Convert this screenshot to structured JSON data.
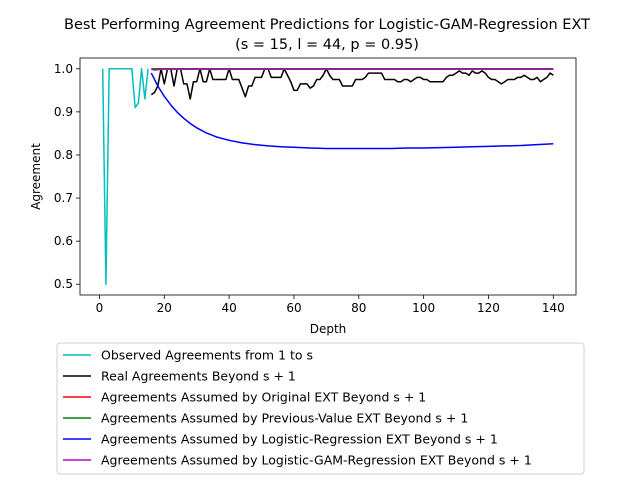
{
  "chart_data": {
    "type": "line",
    "title": "Best Performing Agreement Predictions for Logistic-GAM-Regression EXT",
    "subtitle": "(s = 15, l = 44, p = 0.95)",
    "xlabel": "Depth",
    "ylabel": "Agreement",
    "xlim": [
      -6,
      147
    ],
    "ylim": [
      0.475,
      1.025
    ],
    "xticks": [
      0,
      20,
      40,
      60,
      80,
      100,
      120,
      140
    ],
    "yticks": [
      0.5,
      0.6,
      0.7,
      0.8,
      0.9,
      1.0
    ],
    "ytick_labels": [
      "0.5",
      "0.6",
      "0.7",
      "0.8",
      "0.9",
      "1.0"
    ],
    "grid": false,
    "legend_placement": "below plot",
    "series": [
      {
        "name": "Observed Agreements from 1 to s",
        "color": "#00bfbf",
        "x": [
          1,
          2,
          3,
          4,
          5,
          6,
          7,
          8,
          9,
          10,
          11,
          12,
          13,
          14,
          15
        ],
        "y": [
          1.0,
          0.5,
          1.0,
          1.0,
          1.0,
          1.0,
          1.0,
          1.0,
          1.0,
          1.0,
          0.91,
          0.92,
          1.0,
          0.93,
          1.0
        ]
      },
      {
        "name": "Real Agreements Beyond s + 1",
        "color": "#000000",
        "x": [
          16,
          17,
          18,
          19,
          20,
          21,
          22,
          23,
          24,
          25,
          26,
          27,
          28,
          29,
          30,
          31,
          32,
          33,
          34,
          35,
          36,
          37,
          38,
          39,
          40,
          41,
          42,
          43,
          44,
          45,
          46,
          47,
          48,
          49,
          50,
          51,
          52,
          53,
          54,
          55,
          56,
          57,
          58,
          59,
          60,
          61,
          62,
          63,
          64,
          65,
          66,
          67,
          68,
          69,
          70,
          71,
          72,
          73,
          74,
          75,
          76,
          77,
          78,
          79,
          80,
          81,
          82,
          83,
          84,
          85,
          86,
          87,
          88,
          89,
          90,
          91,
          92,
          93,
          94,
          95,
          96,
          97,
          98,
          99,
          100,
          101,
          102,
          103,
          104,
          105,
          106,
          107,
          108,
          109,
          110,
          111,
          112,
          113,
          114,
          115,
          116,
          117,
          118,
          119,
          120,
          121,
          122,
          123,
          124,
          125,
          126,
          127,
          128,
          129,
          130,
          131,
          132,
          133,
          134,
          135,
          136,
          137,
          138,
          139,
          140
        ],
        "y": [
          0.94,
          0.945,
          0.96,
          1.0,
          0.965,
          1.0,
          1.0,
          0.96,
          1.0,
          1.0,
          0.965,
          0.965,
          0.93,
          0.97,
          0.97,
          1.0,
          0.97,
          0.97,
          1.0,
          0.975,
          0.975,
          0.975,
          0.975,
          0.975,
          1.0,
          0.975,
          0.975,
          0.975,
          0.955,
          0.935,
          0.96,
          0.96,
          0.98,
          0.98,
          0.98,
          1.0,
          1.0,
          0.98,
          0.98,
          0.98,
          0.98,
          1.0,
          0.985,
          0.97,
          0.95,
          0.95,
          0.965,
          0.965,
          0.965,
          0.955,
          0.96,
          0.975,
          0.975,
          0.985,
          1.0,
          0.985,
          0.975,
          0.975,
          0.975,
          0.96,
          0.96,
          0.96,
          0.96,
          0.975,
          0.975,
          0.975,
          0.98,
          0.99,
          0.99,
          0.99,
          0.99,
          0.99,
          0.975,
          0.975,
          0.975,
          0.975,
          0.97,
          0.97,
          0.975,
          0.975,
          0.97,
          0.975,
          0.98,
          0.98,
          0.975,
          0.975,
          0.97,
          0.97,
          0.97,
          0.97,
          0.97,
          0.98,
          0.985,
          0.985,
          0.99,
          0.995,
          0.99,
          0.99,
          0.985,
          0.995,
          0.99,
          0.99,
          0.995,
          0.99,
          0.98,
          0.975,
          0.975,
          0.97,
          0.965,
          0.97,
          0.975,
          0.975,
          0.975,
          0.98,
          0.98,
          0.985,
          0.98,
          0.975,
          0.975,
          0.98,
          0.97,
          0.975,
          0.98,
          0.99,
          0.985
        ]
      },
      {
        "name": "Agreements Assumed by Original EXT Beyond s + 1",
        "color": "#ff0000",
        "x": [
          16,
          140
        ],
        "y": [
          1.0,
          1.0
        ]
      },
      {
        "name": "Agreements Assumed by Previous-Value EXT Beyond s + 1",
        "color": "#008000",
        "x": [
          16,
          140
        ],
        "y": [
          1.0,
          1.0
        ]
      },
      {
        "name": "Agreements Assumed by Logistic-Regression EXT Beyond s + 1",
        "color": "#0000ff",
        "x": [
          16,
          18,
          20,
          22,
          24,
          26,
          28,
          30,
          33,
          36,
          40,
          44,
          48,
          52,
          56,
          60,
          65,
          70,
          75,
          80,
          85,
          90,
          95,
          100,
          105,
          110,
          115,
          120,
          125,
          130,
          135,
          140
        ],
        "y": [
          0.99,
          0.96,
          0.936,
          0.916,
          0.899,
          0.885,
          0.873,
          0.863,
          0.851,
          0.842,
          0.834,
          0.828,
          0.824,
          0.821,
          0.819,
          0.818,
          0.816,
          0.815,
          0.815,
          0.815,
          0.815,
          0.815,
          0.816,
          0.816,
          0.817,
          0.818,
          0.819,
          0.82,
          0.821,
          0.822,
          0.824,
          0.826
        ]
      },
      {
        "name": "Agreements Assumed by Logistic-GAM-Regression EXT Beyond s + 1",
        "color": "#bf00bf",
        "x": [
          16,
          17,
          18,
          20,
          24,
          30,
          40,
          60,
          80,
          100,
          120,
          140
        ],
        "y": [
          0.999,
          0.997,
          0.998,
          0.999,
          0.999,
          0.999,
          0.999,
          0.999,
          0.999,
          0.999,
          0.999,
          0.999
        ]
      }
    ]
  }
}
